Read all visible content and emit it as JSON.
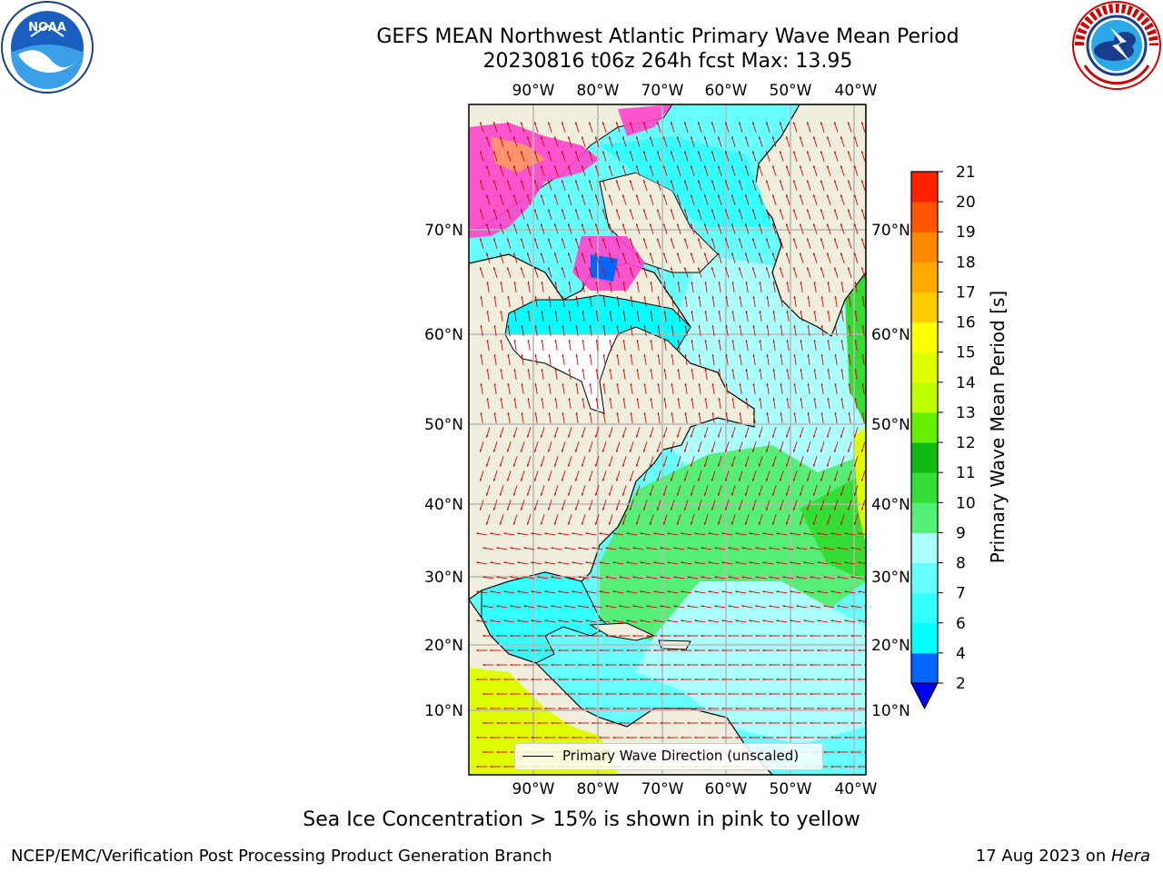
{
  "title": {
    "line1": "GEFS MEAN Northwest Atlantic Primary Wave Mean Period",
    "line2": "20230816 t06z 264h fcst   Max: 13.95"
  },
  "map": {
    "lon_labels": [
      "90°W",
      "80°W",
      "70°W",
      "60°W",
      "50°W",
      "40°W"
    ],
    "lat_labels": [
      "70°N",
      "60°N",
      "50°N",
      "40°N",
      "30°N",
      "20°N",
      "10°N"
    ],
    "legend": "Primary Wave Direction (unscaled)",
    "colors": {
      "land": "#efeedd",
      "coast": "#000000",
      "grid": "#b8b8b8",
      "arrow": "#dd0000",
      "ice_pink": "#ff44cc",
      "ice_orange": "#ff9a66"
    }
  },
  "colorbar": {
    "label": "Primary Wave Mean Period [s]",
    "ticks": [
      "2",
      "4",
      "6",
      "7",
      "8",
      "9",
      "10",
      "11",
      "12",
      "13",
      "14",
      "15",
      "16",
      "17",
      "18",
      "19",
      "20",
      "21"
    ],
    "colors": [
      "#0066ff",
      "#00ffff",
      "#33ffff",
      "#66ffff",
      "#aaffff",
      "#55ee77",
      "#33dd33",
      "#11bb11",
      "#66ee00",
      "#bbff00",
      "#ddff00",
      "#ffff00",
      "#ffcc00",
      "#ffaa00",
      "#ff8800",
      "#ff5500",
      "#ff2200",
      "#ff0000"
    ],
    "under_color": "#0000ee"
  },
  "caption": "Sea Ice Concentration > 15% is shown in pink to yellow",
  "footer": {
    "left": "NCEP/EMC/Verification Post Processing Product Generation Branch",
    "right_prefix": "17 Aug 2023 on ",
    "right_machine": "Hera"
  }
}
